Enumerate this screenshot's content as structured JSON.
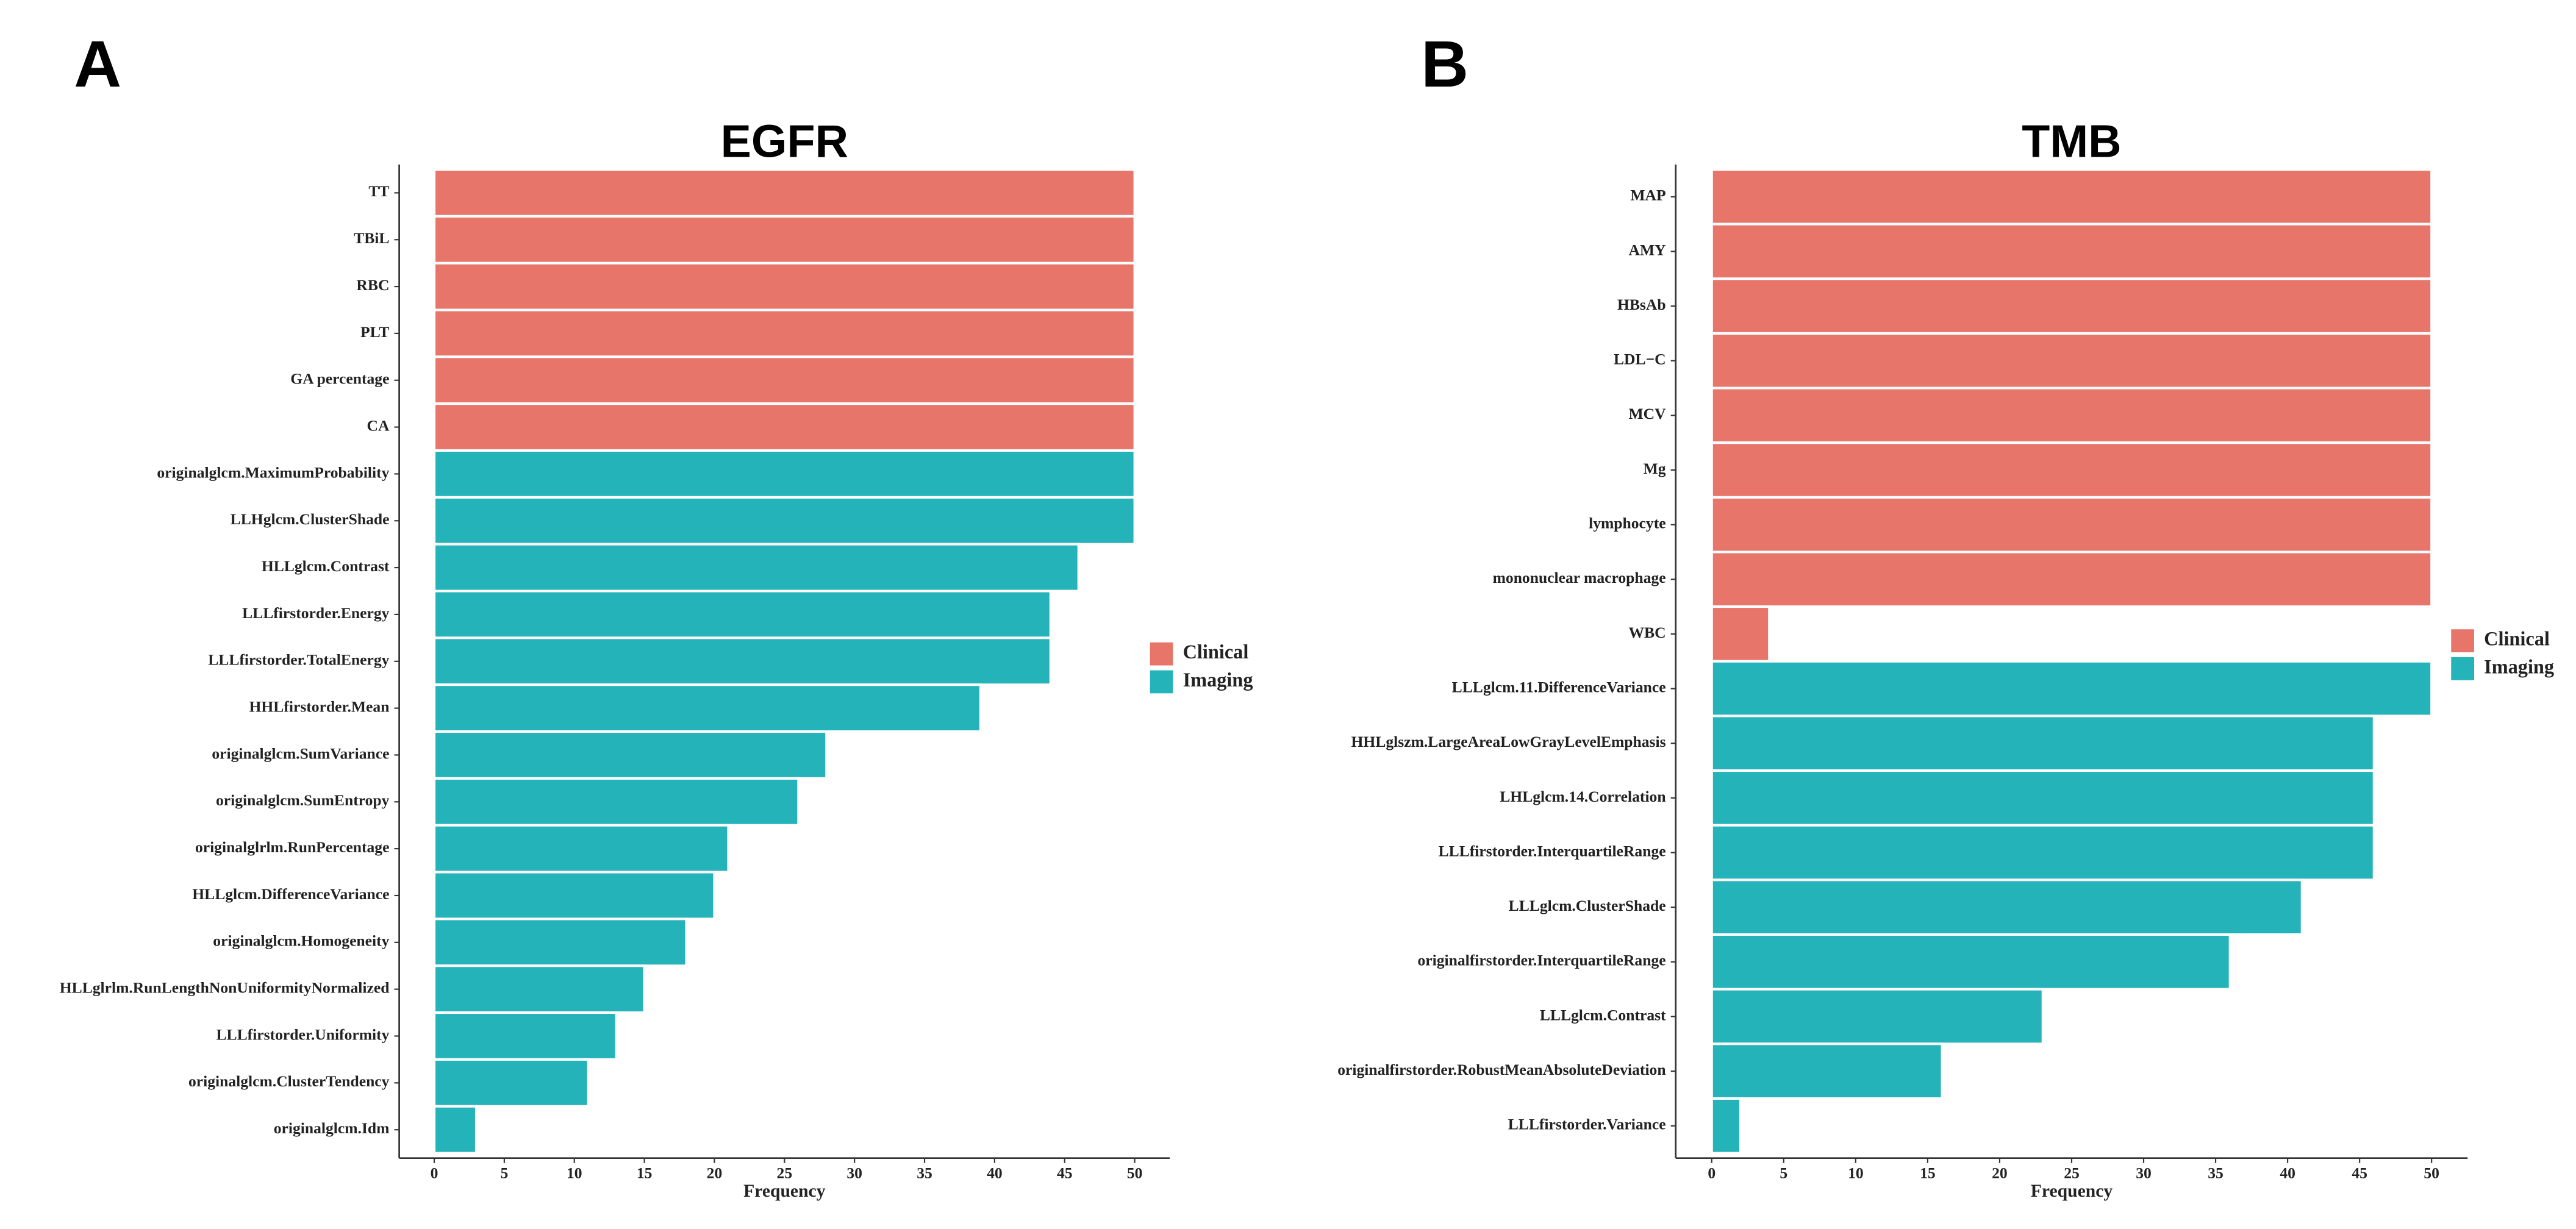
{
  "chart_data": [
    {
      "type": "bar",
      "orientation": "horizontal",
      "panel_label": "A",
      "title": "EGFR",
      "xlabel": "Frequency",
      "categories": [
        "TT",
        "TBiL",
        "RBC",
        "PLT",
        "GA percentage",
        "CA",
        "originalglcm.MaximumProbability",
        "LLHglcm.ClusterShade",
        "HLLglcm.Contrast",
        "LLLfirstorder.Energy",
        "LLLfirstorder.TotalEnergy",
        "HHLfirstorder.Mean",
        "originalglcm.SumVariance",
        "originalglcm.SumEntropy",
        "originalglrlm.RunPercentage",
        "HLLglcm.DifferenceVariance",
        "originalglcm.Homogeneity",
        "HLLglrlm.RunLengthNonUniformityNormalized",
        "LLLfirstorder.Uniformity",
        "originalglcm.ClusterTendency",
        "originalglcm.Idm"
      ],
      "series": [
        {
          "name": "Clinical",
          "color": "#e8756a",
          "values": [
            50,
            50,
            50,
            50,
            50,
            50,
            null,
            null,
            null,
            null,
            null,
            null,
            null,
            null,
            null,
            null,
            null,
            null,
            null,
            null,
            null
          ]
        },
        {
          "name": "Imaging",
          "color": "#23b3b8",
          "values": [
            null,
            null,
            null,
            null,
            null,
            null,
            50,
            50,
            46,
            44,
            44,
            39,
            28,
            26,
            21,
            20,
            18,
            15,
            13,
            11,
            3
          ]
        }
      ],
      "xlim": [
        -2.5,
        52.5
      ],
      "xticks": [
        0,
        5,
        10,
        15,
        20,
        25,
        30,
        35,
        40,
        45,
        50
      ],
      "legend": "right"
    },
    {
      "type": "bar",
      "orientation": "horizontal",
      "panel_label": "B",
      "title": "TMB",
      "xlabel": "Frequency",
      "categories": [
        "MAP",
        "AMY",
        "HBsAb",
        "LDL−C",
        "MCV",
        "Mg",
        "lymphocyte",
        "mononuclear macrophage",
        "WBC",
        "LLLglcm.11.DifferenceVariance",
        "HHLglszm.LargeAreaLowGrayLevelEmphasis",
        "LHLglcm.14.Correlation",
        "LLLfirstorder.InterquartileRange",
        "LLLglcm.ClusterShade",
        "originalfirstorder.InterquartileRange",
        "LLLglcm.Contrast",
        "originalfirstorder.RobustMeanAbsoluteDeviation",
        "LLLfirstorder.Variance"
      ],
      "series": [
        {
          "name": "Clinical",
          "color": "#e8756a",
          "values": [
            50,
            50,
            50,
            50,
            50,
            50,
            50,
            50,
            4,
            null,
            null,
            null,
            null,
            null,
            null,
            null,
            null,
            null
          ]
        },
        {
          "name": "Imaging",
          "color": "#23b3b8",
          "values": [
            null,
            null,
            null,
            null,
            null,
            null,
            null,
            null,
            null,
            50,
            46,
            46,
            46,
            41,
            36,
            23,
            16,
            2
          ]
        }
      ],
      "xlim": [
        -2.5,
        52.5
      ],
      "xticks": [
        0,
        5,
        10,
        15,
        20,
        25,
        30,
        35,
        40,
        45,
        50
      ],
      "legend": "right"
    }
  ]
}
